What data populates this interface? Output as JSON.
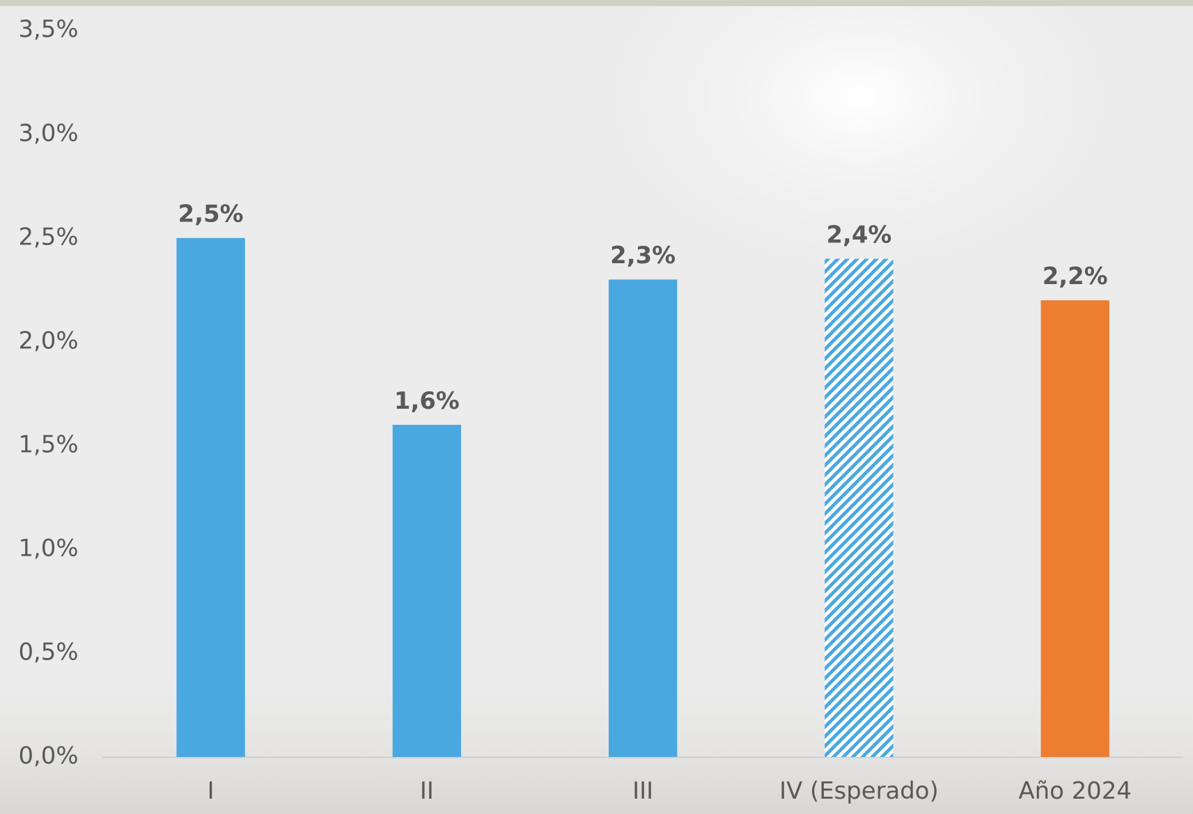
{
  "chart_data": {
    "type": "bar",
    "categories": [
      "I",
      "II",
      "III",
      "IV (Esperado)",
      "Año 2024"
    ],
    "values": [
      2.5,
      1.6,
      2.3,
      2.4,
      2.2
    ],
    "value_labels": [
      "2,5%",
      "1,6%",
      "2,3%",
      "2,4%",
      "2,2%"
    ],
    "colors": [
      "#4aa8e0",
      "#4aa8e0",
      "#4aa8e0",
      "#4aa8e0",
      "#ed7d31"
    ],
    "hatched": [
      false,
      false,
      false,
      true,
      false
    ],
    "ylim": [
      0,
      3.5
    ],
    "yticks": [
      {
        "value": 0,
        "label": "0,0%"
      },
      {
        "value": 0.5,
        "label": "0,5%"
      },
      {
        "value": 1,
        "label": "1,0%"
      },
      {
        "value": 1.5,
        "label": "1,5%"
      },
      {
        "value": 2,
        "label": "2,0%"
      },
      {
        "value": 2.5,
        "label": "2,5%"
      },
      {
        "value": 3,
        "label": "3,0%"
      },
      {
        "value": 3.5,
        "label": "3,5%"
      }
    ],
    "grid": false
  }
}
